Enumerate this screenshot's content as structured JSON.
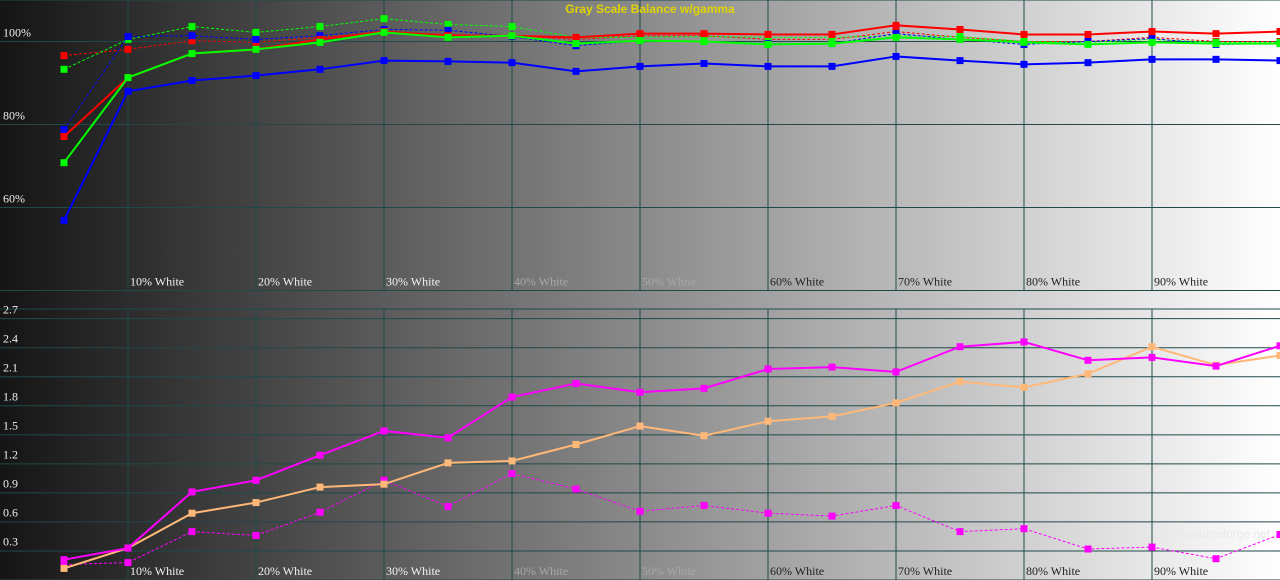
{
  "chart_data": [
    {
      "type": "line",
      "title": "Gray Scale Balance w/gamma",
      "x": [
        5,
        10,
        15,
        20,
        25,
        30,
        35,
        40,
        45,
        50,
        55,
        60,
        65,
        70,
        75,
        80,
        85,
        90,
        95,
        100
      ],
      "xlim": [
        0,
        100
      ],
      "xticks": [
        {
          "value": 10,
          "label": "10% White"
        },
        {
          "value": 20,
          "label": "20% White"
        },
        {
          "value": 30,
          "label": "30% White"
        },
        {
          "value": 40,
          "label": "40% White"
        },
        {
          "value": 50,
          "label": "50% White"
        },
        {
          "value": 60,
          "label": "60% White"
        },
        {
          "value": 70,
          "label": "70% White"
        },
        {
          "value": 80,
          "label": "80% White"
        },
        {
          "value": 90,
          "label": "90% White"
        }
      ],
      "ylim": [
        40,
        110
      ],
      "yticks": [
        {
          "value": 60,
          "label": "60%"
        },
        {
          "value": 80,
          "label": "80%"
        },
        {
          "value": 100,
          "label": "100%"
        }
      ],
      "grid": true,
      "series": [
        {
          "color": "#ff0000",
          "dashed": true,
          "values": [
            96.6,
            98.1,
            100.2,
            99.8,
            101,
            102.2,
            101.7,
            101.4,
            100.5,
            101.4,
            101.4,
            100.5,
            100.5,
            102.4,
            101,
            100,
            100,
            101,
            100,
            100
          ]
        },
        {
          "color": "#00ff00",
          "dashed": true,
          "values": [
            93.3,
            100.5,
            103.6,
            102.2,
            103.6,
            105.5,
            104.1,
            103.6,
            101,
            101,
            101.2,
            101,
            101,
            101.4,
            101.2,
            100,
            99.8,
            100.5,
            99.8,
            99.8
          ]
        },
        {
          "color": "#0000ff",
          "dashed": true,
          "values": [
            78.8,
            101.2,
            101.4,
            100.5,
            101.4,
            102.9,
            102.7,
            101.2,
            99,
            100.2,
            100,
            99.5,
            99.5,
            101.9,
            100.5,
            99.3,
            100,
            100.7,
            99.3,
            99.5
          ]
        },
        {
          "color": "#ff0000",
          "dashed": false,
          "values": [
            77.1,
            91.3,
            97.1,
            98.1,
            100.5,
            102.4,
            101.4,
            101.4,
            101,
            101.9,
            101.9,
            101.7,
            101.7,
            103.9,
            102.9,
            101.7,
            101.7,
            102.4,
            101.9,
            102.4
          ]
        },
        {
          "color": "#00ff00",
          "dashed": false,
          "values": [
            70.8,
            91.3,
            97.1,
            98.1,
            99.8,
            102.2,
            101,
            101.4,
            99.5,
            100.2,
            100,
            99.3,
            99.5,
            101,
            100.5,
            99.8,
            99.3,
            99.8,
            99.5,
            99.5
          ]
        },
        {
          "color": "#0000ff",
          "dashed": false,
          "values": [
            56.9,
            88,
            90.6,
            91.8,
            93.3,
            95.4,
            95.2,
            94.9,
            92.8,
            94,
            94.7,
            94,
            94,
            96.4,
            95.4,
            94.5,
            94.9,
            95.7,
            95.7,
            95.4
          ]
        }
      ]
    },
    {
      "type": "line",
      "annotation": "hcfr.sourceforge.net",
      "x": [
        5,
        10,
        15,
        20,
        25,
        30,
        35,
        40,
        45,
        50,
        55,
        60,
        65,
        70,
        75,
        80,
        85,
        90,
        95,
        100
      ],
      "xlim": [
        0,
        100
      ],
      "xticks": [
        {
          "value": 10,
          "label": "10% White"
        },
        {
          "value": 20,
          "label": "20% White"
        },
        {
          "value": 30,
          "label": "30% White"
        },
        {
          "value": 40,
          "label": "40% White"
        },
        {
          "value": 50,
          "label": "50% White"
        },
        {
          "value": 60,
          "label": "60% White"
        },
        {
          "value": 70,
          "label": "70% White"
        },
        {
          "value": 80,
          "label": "80% White"
        },
        {
          "value": 90,
          "label": "90% White"
        }
      ],
      "ylim": [
        0,
        2.8
      ],
      "yticks": [
        0.3,
        0.6,
        0.9,
        1.2,
        1.5,
        1.8,
        2.1,
        2.4,
        2.7
      ],
      "grid": true,
      "series": [
        {
          "color": "#ff00ff",
          "dashed": true,
          "values": [
            0.16,
            0.18,
            0.5,
            0.46,
            0.7,
            1.03,
            0.76,
            1.1,
            0.94,
            0.71,
            0.77,
            0.69,
            0.66,
            0.77,
            0.5,
            0.53,
            0.32,
            0.34,
            0.22,
            0.47
          ]
        },
        {
          "color": "#ffb878",
          "dashed": false,
          "values": [
            0.12,
            0.33,
            0.69,
            0.8,
            0.96,
            0.99,
            1.21,
            1.23,
            1.4,
            1.59,
            1.49,
            1.64,
            1.69,
            1.83,
            2.05,
            1.99,
            2.13,
            2.41,
            2.22,
            2.32
          ]
        },
        {
          "color": "#ff00ff",
          "dashed": false,
          "values": [
            0.21,
            0.33,
            0.91,
            1.03,
            1.29,
            1.54,
            1.47,
            1.89,
            2.03,
            1.94,
            1.98,
            2.18,
            2.2,
            2.15,
            2.41,
            2.46,
            2.27,
            2.3,
            2.21,
            2.42
          ]
        }
      ]
    }
  ]
}
